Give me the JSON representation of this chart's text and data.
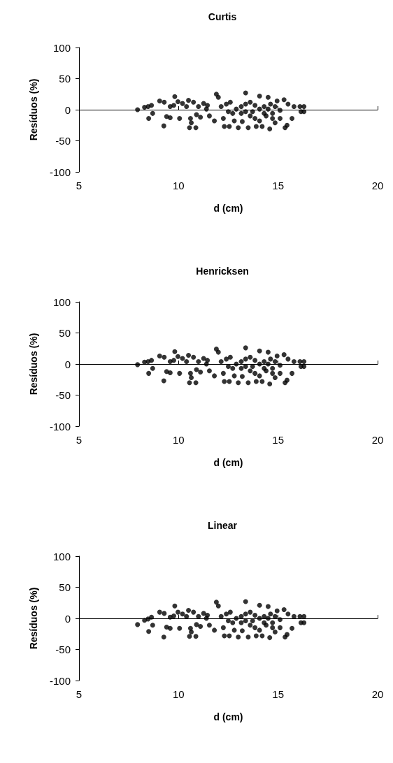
{
  "chart_data": [
    {
      "type": "scatter",
      "title": "Curtis",
      "xlabel": "d (cm)",
      "ylabel": "Resíduos (%)",
      "xlim": [
        5,
        20
      ],
      "xticks": [
        5,
        10,
        15,
        20
      ],
      "ylim": [
        -100,
        100
      ],
      "yticks": [
        -100,
        -50,
        0,
        50,
        100
      ],
      "marker": "circle",
      "series": [
        {
          "color": "#000000",
          "x": [
            7.94,
            8.29,
            8.47,
            8.64,
            8.7,
            8.5,
            9.05,
            9.28,
            9.26,
            9.4,
            9.58,
            9.58,
            9.81,
            9.97,
            10.05,
            9.76,
            10.2,
            10.5,
            10.6,
            10.64,
            10.55,
            10.87,
            10.75,
            10.9,
            11.1,
            11.26,
            11.45,
            11.55,
            11.8,
            11.9,
            12.0,
            12.14,
            12.25,
            12.3,
            12.55,
            12.6,
            12.72,
            12.8,
            13.0,
            13.15,
            13.2,
            13.37,
            13.5,
            13.6,
            13.72,
            13.84,
            13.9,
            14.07,
            14.2,
            14.3,
            14.4,
            14.5,
            14.58,
            14.62,
            14.72,
            14.85,
            14.95,
            15.1,
            15.1,
            15.3,
            15.35,
            15.45,
            15.5,
            15.7,
            15.8,
            16.1,
            16.15,
            16.3,
            16.3,
            12.9,
            13.37,
            13.6,
            14.07,
            14.3,
            13.84,
            14.5,
            14.85,
            13.15,
            12.5,
            12.4,
            11.4,
            11.0,
            10.4,
            13.37,
            14.72,
            14.07
          ],
          "values": [
            0,
            4,
            5,
            7,
            -6,
            -14,
            14,
            12,
            -26,
            -11,
            -13,
            5,
            21,
            13,
            -14,
            7,
            10,
            15,
            -14,
            -21,
            -29,
            -29,
            12,
            -8,
            -12,
            10,
            7,
            -10,
            -18,
            25,
            20,
            5,
            -14,
            -27,
            -27,
            12,
            -6,
            -18,
            -29,
            5,
            -19,
            27,
            -29,
            12,
            -3,
            -14,
            -27,
            22,
            -27,
            5,
            -10,
            20,
            -31,
            9,
            -6,
            -21,
            14,
            -1,
            -14,
            16,
            -29,
            -25,
            9,
            -14,
            5,
            5,
            -3,
            5,
            -3,
            1,
            9,
            -10,
            1,
            -6,
            7,
            1,
            5,
            -6,
            -3,
            9,
            1,
            5,
            5,
            -3,
            -14,
            -18
          ]
        }
      ]
    },
    {
      "type": "scatter",
      "title": "Henricksen",
      "xlabel": "d (cm)",
      "ylabel": "Resíduos (%)",
      "xlim": [
        5,
        20
      ],
      "xticks": [
        5,
        10,
        15,
        20
      ],
      "ylim": [
        -100,
        100
      ],
      "yticks": [
        -100,
        -50,
        0,
        50,
        100
      ],
      "marker": "circle",
      "series": [
        {
          "color": "#000000",
          "x": [
            7.94,
            8.29,
            8.47,
            8.64,
            8.7,
            8.5,
            9.05,
            9.28,
            9.26,
            9.4,
            9.58,
            9.58,
            9.81,
            9.97,
            10.05,
            9.76,
            10.2,
            10.5,
            10.6,
            10.64,
            10.55,
            10.87,
            10.75,
            10.9,
            11.1,
            11.26,
            11.45,
            11.55,
            11.8,
            11.9,
            12.0,
            12.14,
            12.25,
            12.3,
            12.55,
            12.6,
            12.72,
            12.8,
            13.0,
            13.15,
            13.2,
            13.37,
            13.5,
            13.6,
            13.72,
            13.84,
            13.9,
            14.07,
            14.2,
            14.3,
            14.4,
            14.5,
            14.58,
            14.62,
            14.72,
            14.85,
            14.95,
            15.1,
            15.1,
            15.3,
            15.35,
            15.45,
            15.5,
            15.7,
            15.8,
            16.1,
            16.15,
            16.3,
            16.3,
            12.9,
            13.37,
            13.6,
            14.07,
            14.3,
            13.84,
            14.5,
            14.85,
            13.15,
            12.5,
            12.4,
            11.4,
            11.0,
            10.4,
            13.37,
            14.72,
            14.07
          ],
          "values": [
            -1,
            3,
            4,
            6,
            -7,
            -15,
            13,
            11,
            -27,
            -12,
            -14,
            4,
            20,
            12,
            -15,
            6,
            9,
            14,
            -15,
            -22,
            -30,
            -30,
            11,
            -9,
            -13,
            9,
            6,
            -11,
            -19,
            24,
            19,
            4,
            -15,
            -28,
            -28,
            11,
            -7,
            -19,
            -30,
            4,
            -20,
            26,
            -30,
            11,
            -4,
            -15,
            -28,
            21,
            -28,
            4,
            -11,
            19,
            -32,
            8,
            -7,
            -22,
            13,
            -2,
            -15,
            15,
            -30,
            -26,
            8,
            -15,
            4,
            4,
            -4,
            4,
            -4,
            0,
            8,
            -11,
            0,
            -7,
            6,
            0,
            4,
            -7,
            -4,
            8,
            0,
            4,
            4,
            -4,
            -15,
            -19
          ]
        }
      ]
    },
    {
      "type": "scatter",
      "title": "Linear",
      "xlabel": "d (cm)",
      "ylabel": "Resíduos (%)",
      "xlim": [
        5,
        20
      ],
      "xticks": [
        5,
        10,
        15,
        20
      ],
      "ylim": [
        -100,
        100
      ],
      "yticks": [
        -100,
        -50,
        0,
        50,
        100
      ],
      "marker": "circle",
      "series": [
        {
          "color": "#000000",
          "x": [
            7.94,
            8.29,
            8.47,
            8.64,
            8.7,
            8.5,
            9.05,
            9.28,
            9.26,
            9.4,
            9.58,
            9.58,
            9.81,
            9.97,
            10.05,
            9.76,
            10.2,
            10.5,
            10.6,
            10.64,
            10.55,
            10.87,
            10.75,
            10.9,
            11.1,
            11.26,
            11.45,
            11.55,
            11.8,
            11.9,
            12.0,
            12.14,
            12.25,
            12.3,
            12.55,
            12.6,
            12.72,
            12.8,
            13.0,
            13.15,
            13.2,
            13.37,
            13.5,
            13.6,
            13.72,
            13.84,
            13.9,
            14.07,
            14.2,
            14.3,
            14.4,
            14.5,
            14.58,
            14.62,
            14.72,
            14.85,
            14.95,
            15.1,
            15.1,
            15.3,
            15.35,
            15.45,
            15.5,
            15.7,
            15.8,
            16.1,
            16.15,
            16.3,
            16.3,
            12.9,
            13.37,
            13.6,
            14.07,
            14.3,
            13.84,
            14.5,
            14.85,
            13.15,
            12.5,
            12.4,
            11.4,
            11.0,
            10.4,
            13.37,
            14.72,
            14.07
          ],
          "values": [
            -10,
            -3,
            -1,
            2,
            -11,
            -21,
            10,
            8,
            -30,
            -14,
            -16,
            2,
            20,
            10,
            -16,
            4,
            7,
            13,
            -16,
            -22,
            -29,
            -29,
            10,
            -10,
            -13,
            8,
            5,
            -11,
            -19,
            26,
            20,
            3,
            -15,
            -28,
            -28,
            10,
            -7,
            -19,
            -30,
            3,
            -20,
            27,
            -30,
            10,
            -4,
            -15,
            -28,
            21,
            -28,
            3,
            -11,
            19,
            -31,
            7,
            -7,
            -22,
            12,
            -2,
            -15,
            14,
            -30,
            -26,
            7,
            -16,
            3,
            3,
            -7,
            3,
            -7,
            0,
            7,
            -11,
            0,
            -7,
            5,
            0,
            3,
            -7,
            -4,
            7,
            0,
            3,
            3,
            -4,
            -15,
            -19
          ]
        }
      ]
    }
  ]
}
